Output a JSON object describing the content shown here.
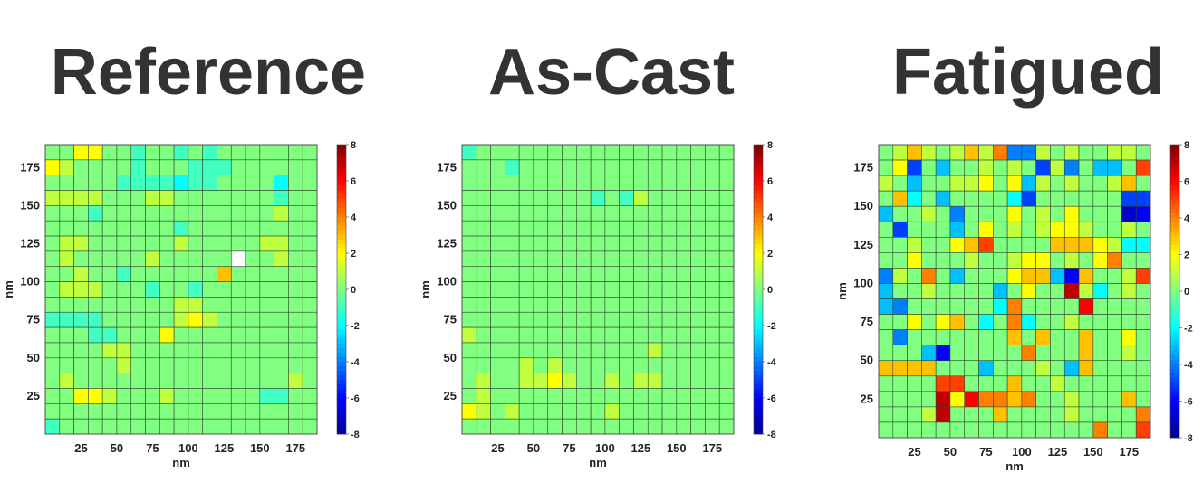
{
  "colormap": [
    "#00008f",
    "#0000ff",
    "#0080ff",
    "#00ffff",
    "#80ff80",
    "#ffff00",
    "#ff8000",
    "#ff0000",
    "#800000"
  ],
  "chart_data": [
    {
      "type": "heatmap",
      "title": "Reference",
      "xlabel": "nm",
      "ylabel": "nm",
      "xticks": [
        25,
        50,
        75,
        100,
        125,
        150,
        175
      ],
      "yticks": [
        25,
        50,
        75,
        100,
        125,
        150,
        175
      ],
      "range": [
        0,
        190
      ],
      "clim": [
        -8,
        8
      ],
      "colorbar_ticks": [
        8,
        6,
        4,
        2,
        0,
        -2,
        -4,
        -6,
        -8
      ],
      "nan_cells": [
        [
          7,
          13
        ]
      ],
      "values": [
        [
          0,
          0,
          2,
          2,
          0,
          0,
          -1,
          0,
          0,
          -1,
          0,
          -1,
          0,
          0,
          0,
          0,
          0,
          0,
          0
        ],
        [
          2,
          1,
          0,
          0,
          0,
          0,
          -1,
          0,
          0,
          0,
          -1,
          -1,
          -1,
          0,
          0,
          0,
          0,
          0,
          0
        ],
        [
          0,
          0,
          0,
          0,
          0,
          -1,
          -1,
          -1,
          -1,
          -2,
          -1,
          -1,
          0,
          0,
          0,
          0,
          -2,
          0,
          0
        ],
        [
          1,
          1,
          1,
          1,
          0,
          0,
          0,
          1,
          1,
          0,
          0,
          0,
          0,
          0,
          0,
          0,
          -1,
          0,
          0
        ],
        [
          0,
          0,
          0,
          -1,
          0,
          0,
          0,
          0,
          0,
          0,
          0,
          0,
          0,
          0,
          0,
          0,
          1,
          0,
          0
        ],
        [
          0,
          0,
          0,
          0,
          0,
          0,
          0,
          0,
          0,
          -1,
          0,
          0,
          0,
          0,
          0,
          0,
          0,
          0,
          0
        ],
        [
          0,
          1,
          1,
          0,
          0,
          0,
          0,
          0,
          0,
          1,
          0,
          0,
          0,
          0,
          0,
          1,
          1,
          0,
          0
        ],
        [
          0,
          1,
          0,
          0,
          0,
          0,
          0,
          1,
          0,
          0,
          0,
          0,
          0,
          0,
          0,
          0,
          1,
          0,
          0
        ],
        [
          0,
          0,
          1,
          0,
          0,
          -1,
          0,
          0,
          0,
          0,
          0,
          0,
          3,
          0,
          0,
          0,
          0,
          0,
          0
        ],
        [
          0,
          1,
          1,
          1,
          0,
          0,
          0,
          -1,
          0,
          0,
          -1,
          0,
          0,
          0,
          0,
          0,
          0,
          0,
          0
        ],
        [
          0,
          0,
          0,
          0,
          0,
          0,
          0,
          0,
          0,
          1,
          1,
          0,
          0,
          0,
          0,
          0,
          0,
          0,
          0
        ],
        [
          -1,
          -1,
          -1,
          -1,
          0,
          0,
          0,
          0,
          0,
          1,
          2,
          1,
          0,
          0,
          0,
          0,
          0,
          0,
          0
        ],
        [
          0,
          0,
          0,
          -1,
          -1,
          0,
          0,
          0,
          2,
          0,
          0,
          0,
          0,
          0,
          0,
          0,
          0,
          0,
          0
        ],
        [
          0,
          0,
          0,
          0,
          1,
          1,
          0,
          0,
          0,
          0,
          0,
          0,
          0,
          0,
          0,
          0,
          0,
          0,
          0
        ],
        [
          0,
          0,
          0,
          0,
          0,
          1,
          0,
          0,
          0,
          0,
          0,
          0,
          0,
          0,
          0,
          0,
          0,
          0,
          0
        ],
        [
          0,
          1,
          0,
          0,
          0,
          0,
          0,
          0,
          0,
          0,
          0,
          0,
          0,
          0,
          0,
          0,
          0,
          1,
          0
        ],
        [
          0,
          0,
          2,
          2,
          1,
          0,
          0,
          0,
          1,
          0,
          0,
          0,
          0,
          0,
          0,
          -1,
          -1,
          0,
          0
        ],
        [
          0,
          0,
          0,
          0,
          0,
          0,
          0,
          0,
          0,
          0,
          0,
          0,
          0,
          0,
          0,
          0,
          0,
          0,
          0
        ],
        [
          -1,
          0,
          0,
          0,
          0,
          0,
          0,
          0,
          0,
          0,
          0,
          0,
          0,
          0,
          0,
          0,
          0,
          0,
          0
        ]
      ]
    },
    {
      "type": "heatmap",
      "title": "As-Cast",
      "xlabel": "nm",
      "ylabel": "nm",
      "xticks": [
        25,
        50,
        75,
        100,
        125,
        150,
        175
      ],
      "yticks": [
        25,
        50,
        75,
        100,
        125,
        150,
        175
      ],
      "range": [
        0,
        190
      ],
      "clim": [
        -8,
        8
      ],
      "colorbar_ticks": [
        8,
        6,
        4,
        2,
        0,
        -2,
        -4,
        -6,
        -8
      ],
      "nan_cells": [],
      "values": [
        [
          -1,
          0,
          0,
          0,
          0,
          0,
          0,
          0,
          0,
          0,
          0,
          0,
          0,
          0,
          0,
          0,
          0,
          0,
          0
        ],
        [
          0,
          0,
          0,
          -1,
          0,
          0,
          0,
          0,
          0,
          0,
          0,
          0,
          0,
          0,
          0,
          0,
          0,
          0,
          0
        ],
        [
          0,
          0,
          0,
          0,
          0,
          0,
          0,
          0,
          0,
          0,
          0,
          0,
          0,
          0,
          0,
          0,
          0,
          0,
          0
        ],
        [
          0,
          0,
          0,
          0,
          0,
          0,
          0,
          0,
          0,
          -1,
          0,
          -1,
          1,
          0,
          0,
          0,
          0,
          0,
          0
        ],
        [
          0,
          0,
          0,
          0,
          0,
          0,
          0,
          0,
          0,
          0,
          0,
          0,
          0,
          0,
          0,
          0,
          0,
          0,
          0
        ],
        [
          0,
          0,
          0,
          0,
          0,
          0,
          0,
          0,
          0,
          0,
          0,
          0,
          0,
          0,
          0,
          0,
          0,
          0,
          0
        ],
        [
          0,
          0,
          0,
          0,
          0,
          0,
          0,
          0,
          0,
          0,
          0,
          0,
          0,
          0,
          0,
          0,
          0,
          0,
          0
        ],
        [
          0,
          0,
          0,
          0,
          0,
          0,
          0,
          0,
          0,
          0,
          0,
          0,
          0,
          0,
          0,
          0,
          0,
          0,
          0
        ],
        [
          0,
          0,
          0,
          0,
          0,
          0,
          0,
          0,
          0,
          0,
          0,
          0,
          0,
          0,
          0,
          0,
          0,
          0,
          0
        ],
        [
          0,
          0,
          0,
          0,
          0,
          0,
          0,
          0,
          0,
          0,
          0,
          0,
          0,
          0,
          0,
          0,
          0,
          0,
          0
        ],
        [
          0,
          0,
          0,
          0,
          0,
          0,
          0,
          0,
          0,
          0,
          0,
          0,
          0,
          0,
          0,
          0,
          0,
          0,
          0
        ],
        [
          0,
          0,
          0,
          0,
          0,
          0,
          0,
          0,
          0,
          0,
          0,
          0,
          0,
          0,
          0,
          0,
          0,
          0,
          0
        ],
        [
          1,
          0,
          0,
          0,
          0,
          0,
          0,
          0,
          0,
          0,
          0,
          0,
          0,
          0,
          0,
          0,
          0,
          0,
          0
        ],
        [
          0,
          0,
          0,
          0,
          0,
          0,
          0,
          0,
          0,
          0,
          0,
          0,
          0,
          1,
          0,
          0,
          0,
          0,
          0
        ],
        [
          0,
          0,
          0,
          0,
          1,
          0,
          1,
          0,
          0,
          0,
          0,
          0,
          0,
          0,
          0,
          0,
          0,
          0,
          0
        ],
        [
          0,
          1,
          0,
          0,
          1,
          1,
          2,
          1,
          0,
          0,
          1,
          0,
          1,
          1,
          0,
          0,
          0,
          0,
          0
        ],
        [
          0,
          1,
          0,
          0,
          0,
          0,
          0,
          0,
          0,
          0,
          0,
          0,
          0,
          0,
          0,
          0,
          0,
          0,
          0
        ],
        [
          2,
          1,
          0,
          1,
          0,
          0,
          0,
          0,
          0,
          0,
          1,
          0,
          0,
          0,
          0,
          0,
          0,
          0,
          0
        ],
        [
          0,
          0,
          0,
          0,
          0,
          0,
          0,
          0,
          0,
          0,
          0,
          0,
          0,
          0,
          0,
          0,
          0,
          0,
          0
        ]
      ]
    },
    {
      "type": "heatmap",
      "title": "Fatigued",
      "xlabel": "nm",
      "ylabel": "nm",
      "xticks": [
        25,
        50,
        75,
        100,
        125,
        150,
        175
      ],
      "yticks": [
        25,
        50,
        75,
        100,
        125,
        150,
        175
      ],
      "range": [
        0,
        190
      ],
      "clim": [
        -8,
        8
      ],
      "colorbar_ticks": [
        8,
        6,
        4,
        2,
        0,
        -2,
        -4,
        -6,
        -8
      ],
      "nan_cells": [],
      "values": [
        [
          0,
          1,
          3,
          1,
          0,
          1,
          3,
          1,
          4,
          -4,
          -4,
          1,
          0,
          1,
          0,
          0,
          1,
          1,
          0
        ],
        [
          0,
          2,
          -5,
          0,
          -3,
          0,
          0,
          1,
          0,
          1,
          0,
          -5,
          1,
          -4,
          0,
          -3,
          -3,
          0,
          5
        ],
        [
          1,
          0,
          -3,
          0,
          0,
          1,
          1,
          2,
          0,
          2,
          -3,
          1,
          0,
          1,
          0,
          0,
          1,
          3,
          0
        ],
        [
          0,
          3,
          -2,
          0,
          -3,
          0,
          0,
          0,
          0,
          -2,
          -5,
          0,
          0,
          0,
          0,
          0,
          0,
          -5,
          -5
        ],
        [
          -3,
          0,
          0,
          1,
          0,
          -4,
          0,
          0,
          0,
          2,
          0,
          1,
          0,
          2,
          0,
          0,
          0,
          -7,
          -6
        ],
        [
          0,
          -5,
          0,
          0,
          0,
          -3,
          0,
          2,
          0,
          1,
          0,
          1,
          2,
          2,
          1,
          0,
          0,
          1,
          0
        ],
        [
          0,
          0,
          1,
          0,
          0,
          2,
          3,
          5,
          0,
          0,
          0,
          0,
          3,
          3,
          3,
          2,
          1,
          -2,
          -2
        ],
        [
          0,
          0,
          2,
          0,
          0,
          0,
          1,
          0,
          0,
          1,
          2,
          2,
          0,
          1,
          0,
          2,
          4,
          0,
          0
        ],
        [
          -4,
          1,
          0,
          4,
          0,
          -3,
          0,
          0,
          0,
          2,
          3,
          3,
          -3,
          -6,
          3,
          0,
          0,
          1,
          5
        ],
        [
          -3,
          0,
          0,
          1,
          0,
          0,
          0,
          0,
          -3,
          0,
          2,
          0,
          0,
          7,
          1,
          -2,
          0,
          1,
          0
        ],
        [
          -3,
          -4,
          0,
          0,
          0,
          0,
          0,
          0,
          -2,
          4,
          0,
          0,
          0,
          0,
          6,
          0,
          0,
          0,
          0
        ],
        [
          0,
          0,
          2,
          0,
          2,
          3,
          0,
          -2,
          0,
          4,
          -2,
          0,
          0,
          1,
          0,
          0,
          0,
          0,
          0
        ],
        [
          0,
          -4,
          0,
          0,
          0,
          0,
          0,
          0,
          0,
          3,
          0,
          3,
          0,
          0,
          3,
          0,
          0,
          2,
          0
        ],
        [
          0,
          0,
          0,
          -3,
          -6,
          0,
          0,
          0,
          0,
          0,
          4,
          0,
          0,
          0,
          3,
          0,
          0,
          1,
          0
        ],
        [
          3,
          3,
          3,
          3,
          0,
          0,
          0,
          -3,
          0,
          0,
          0,
          1,
          0,
          -3,
          3,
          0,
          0,
          0,
          0
        ],
        [
          0,
          0,
          0,
          0,
          5,
          5,
          0,
          0,
          0,
          3,
          0,
          0,
          1,
          0,
          0,
          0,
          0,
          0,
          0
        ],
        [
          0,
          0,
          0,
          0,
          7,
          2,
          6,
          4,
          4,
          3,
          4,
          0,
          0,
          1,
          0,
          0,
          0,
          3,
          0
        ],
        [
          0,
          0,
          0,
          1,
          7,
          0,
          0,
          0,
          3,
          0,
          0,
          0,
          0,
          1,
          0,
          0,
          0,
          0,
          4
        ],
        [
          0,
          0,
          0,
          0,
          0,
          0,
          0,
          0,
          0,
          0,
          0,
          0,
          0,
          0,
          0,
          4,
          0,
          0,
          5
        ]
      ]
    }
  ]
}
